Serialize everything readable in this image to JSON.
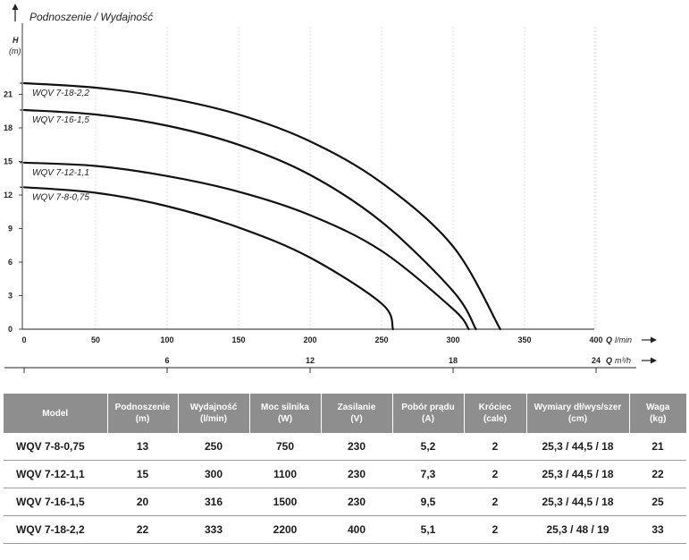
{
  "chart_data": {
    "type": "line",
    "title": "Podnoszenie / Wydajność",
    "ylabel": "H",
    "yunit": "(m)",
    "xlabel": "Q",
    "xunit": "l/min",
    "x2label": "Q",
    "x2unit": "m³/h",
    "xlim": [
      0,
      400
    ],
    "ylim": [
      0,
      24
    ],
    "xticks": [
      0,
      50,
      100,
      150,
      200,
      250,
      300,
      350,
      400
    ],
    "yticks": [
      0,
      3,
      6,
      9,
      12,
      15,
      18,
      21
    ],
    "x2ticks": [
      6,
      12,
      18,
      24
    ],
    "grid": "vertical",
    "series": [
      {
        "name": "WQV 7-8-0,75",
        "shutoff": 12.7,
        "points": [
          [
            0,
            12.7
          ],
          [
            50,
            12.2
          ],
          [
            100,
            11.0
          ],
          [
            150,
            9.1
          ],
          [
            200,
            6.4
          ],
          [
            250,
            2.3
          ],
          [
            258,
            0
          ]
        ]
      },
      {
        "name": "WQV 7-12-1,1",
        "shutoff": 14.9,
        "points": [
          [
            0,
            14.9
          ],
          [
            50,
            14.6
          ],
          [
            100,
            13.7
          ],
          [
            150,
            12.3
          ],
          [
            200,
            10.2
          ],
          [
            250,
            7.0
          ],
          [
            300,
            1.8
          ],
          [
            311,
            0
          ]
        ]
      },
      {
        "name": "WQV 7-16-1,5",
        "shutoff": 19.6,
        "points": [
          [
            0,
            19.6
          ],
          [
            50,
            19.2
          ],
          [
            100,
            18.2
          ],
          [
            150,
            16.5
          ],
          [
            200,
            13.8
          ],
          [
            250,
            9.6
          ],
          [
            300,
            3.4
          ],
          [
            316,
            0
          ]
        ]
      },
      {
        "name": "WQV 7-18-2,2",
        "shutoff": 22.0,
        "points": [
          [
            0,
            22.0
          ],
          [
            50,
            21.6
          ],
          [
            100,
            20.7
          ],
          [
            150,
            19.2
          ],
          [
            200,
            16.8
          ],
          [
            250,
            13.1
          ],
          [
            300,
            7.4
          ],
          [
            333,
            0
          ]
        ]
      }
    ]
  },
  "table": {
    "headers": [
      [
        "Model"
      ],
      [
        "Podnoszenie",
        "(m)"
      ],
      [
        "Wydajność",
        "(l/min)"
      ],
      [
        "Moc silnika",
        "(W)"
      ],
      [
        "Zasilanie",
        "(V)"
      ],
      [
        "Pobór prądu",
        "(A)"
      ],
      [
        "Króciec",
        "(cale)"
      ],
      [
        "Wymiary dł/wys/szer",
        "(cm)"
      ],
      [
        "Waga",
        "(kg)"
      ]
    ],
    "rows": [
      [
        "WQV 7-8-0,75",
        "13",
        "250",
        "750",
        "230",
        "5,2",
        "2",
        "25,3 / 44,5 / 18",
        "21"
      ],
      [
        "WQV 7-12-1,1",
        "15",
        "300",
        "1100",
        "230",
        "7,3",
        "2",
        "25,3 / 44,5 / 18",
        "22"
      ],
      [
        "WQV 7-16-1,5",
        "20",
        "316",
        "1500",
        "230",
        "9,5",
        "2",
        "25,3 / 44,5 / 18",
        "25"
      ],
      [
        "WQV 7-18-2,2",
        "22",
        "333",
        "2200",
        "400",
        "5,1",
        "2",
        "25,3 / 48 / 19",
        "33"
      ]
    ]
  }
}
